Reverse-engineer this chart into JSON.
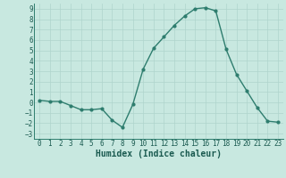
{
  "x": [
    0,
    1,
    2,
    3,
    4,
    5,
    6,
    7,
    8,
    9,
    10,
    11,
    12,
    13,
    14,
    15,
    16,
    17,
    18,
    19,
    20,
    21,
    22,
    23
  ],
  "y": [
    0.2,
    0.1,
    0.1,
    -0.3,
    -0.7,
    -0.7,
    -0.6,
    -1.7,
    -2.4,
    -0.2,
    3.2,
    5.2,
    6.3,
    7.4,
    8.3,
    9.0,
    9.1,
    8.8,
    5.1,
    2.7,
    1.1,
    -0.5,
    -1.8,
    -1.9
  ],
  "line_color": "#2e7d6e",
  "marker": "o",
  "marker_size": 2.0,
  "line_width": 1.0,
  "bg_color": "#c8e8e0",
  "grid_color": "#afd4cc",
  "xlabel": "Humidex (Indice chaleur)",
  "ylim": [
    -3.5,
    9.5
  ],
  "xlim": [
    -0.5,
    23.5
  ],
  "yticks": [
    -3,
    -2,
    -1,
    0,
    1,
    2,
    3,
    4,
    5,
    6,
    7,
    8,
    9
  ],
  "xticks": [
    0,
    1,
    2,
    3,
    4,
    5,
    6,
    7,
    8,
    9,
    10,
    11,
    12,
    13,
    14,
    15,
    16,
    17,
    18,
    19,
    20,
    21,
    22,
    23
  ],
  "tick_fontsize": 5.5,
  "label_fontsize": 7.0,
  "label_color": "#1a5a50",
  "tick_color": "#1a5a50",
  "spine_color": "#2e7d6e"
}
